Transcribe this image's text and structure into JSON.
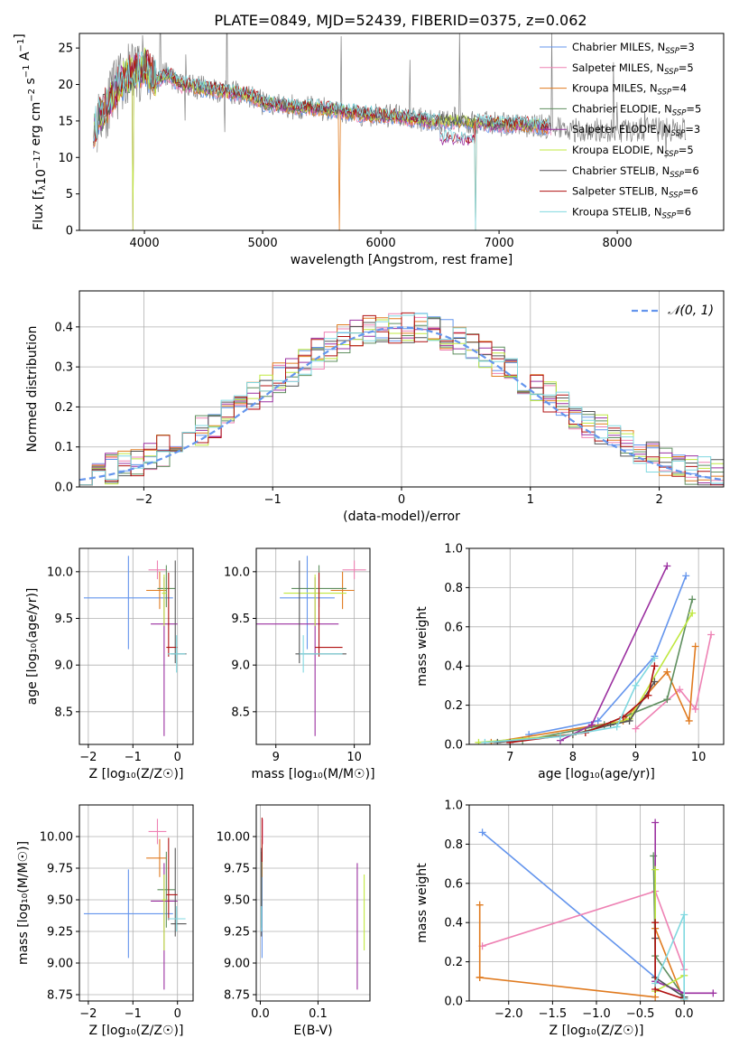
{
  "title": "PLATE=0849, MJD=52439, FIBERID=0375, z=0.062",
  "colors": [
    "#6495ed",
    "#ee82b4",
    "#e07b20",
    "#5f8f5f",
    "#9b30a0",
    "#c0e840",
    "#555555",
    "#b01010",
    "#80d8e0"
  ],
  "legend_spectrum": [
    {
      "label": "Chabrier MILES, N",
      "sub": "SSP",
      "tail": "=3"
    },
    {
      "label": "Salpeter MILES, N",
      "sub": "SSP",
      "tail": "=5"
    },
    {
      "label": "Kroupa MILES, N",
      "sub": "SSP",
      "tail": "=4"
    },
    {
      "label": "Chabrier ELODIE, N",
      "sub": "SSP",
      "tail": "=5"
    },
    {
      "label": "Salpeter ELODIE, N",
      "sub": "SSP",
      "tail": "=3"
    },
    {
      "label": "Kroupa ELODIE, N",
      "sub": "SSP",
      "tail": "=5"
    },
    {
      "label": "Chabrier STELIB, N",
      "sub": "SSP",
      "tail": "=6"
    },
    {
      "label": "Salpeter STELIB, N",
      "sub": "SSP",
      "tail": "=6"
    },
    {
      "label": "Kroupa STELIB, N",
      "sub": "SSP",
      "tail": "=6"
    }
  ],
  "legend_hist": "𝒩(0, 1)",
  "chart_data": [
    {
      "id": "spectrum",
      "type": "line",
      "xlabel": "wavelength [Angstrom, rest frame]",
      "ylabel_parts": [
        "Flux [f",
        "λ",
        "10",
        "−17",
        " erg cm",
        "−2",
        " s",
        "−1",
        " A",
        "−1",
        "]"
      ],
      "xlim": [
        3450,
        8900
      ],
      "ylim": [
        0,
        27
      ],
      "xticks": [
        4000,
        5000,
        6000,
        7000,
        8000
      ],
      "yticks": [
        0,
        5,
        10,
        15,
        20,
        25
      ],
      "envelope": [
        [
          3600,
          15.2
        ],
        [
          3700,
          17.5
        ],
        [
          3800,
          20.5
        ],
        [
          3900,
          21.5
        ],
        [
          4000,
          22.5
        ],
        [
          4100,
          20.5
        ],
        [
          4200,
          21.5
        ],
        [
          4300,
          20
        ],
        [
          4500,
          19.5
        ],
        [
          4700,
          19
        ],
        [
          4900,
          18.5
        ],
        [
          5000,
          17.5
        ],
        [
          5200,
          17
        ],
        [
          5400,
          16.8
        ],
        [
          5600,
          16.5
        ],
        [
          5800,
          16
        ],
        [
          6000,
          15.7
        ],
        [
          6200,
          15.5
        ],
        [
          6400,
          15
        ],
        [
          6600,
          15
        ],
        [
          6800,
          14.8
        ],
        [
          7000,
          14.5
        ],
        [
          7200,
          14.5
        ],
        [
          7400,
          14.2
        ]
      ],
      "observed_end": 8580
    },
    {
      "id": "residuals",
      "type": "step",
      "xlabel": "(data-model)/error",
      "ylabel": "Normed distribution",
      "xlim": [
        -2.5,
        2.5
      ],
      "ylim": [
        0,
        0.49
      ],
      "xticks": [
        -2,
        -1,
        0,
        1,
        2
      ],
      "yticks": [
        0.0,
        0.1,
        0.2,
        0.3,
        0.4
      ],
      "bins": 50,
      "reference": {
        "name": "𝒩(0, 1)",
        "mean": 0,
        "sigma": 1
      }
    },
    {
      "id": "age_vs_Z",
      "type": "errorbar",
      "xlabel": "Z [log₁₀(Z/Z☉)]",
      "ylabel": "age  [log₁₀(age/yr)]",
      "xlim": [
        -2.2,
        0.35
      ],
      "ylim": [
        8.15,
        10.25
      ],
      "xticks": [
        -2,
        -1,
        0
      ],
      "yticks": [
        8.5,
        9.0,
        9.5,
        10.0
      ],
      "points": [
        {
          "x": -1.1,
          "xerr": [
            1.0,
            1.0
          ],
          "y": 9.72,
          "yerr": [
            0.55,
            0.45
          ],
          "c": 0
        },
        {
          "x": -0.45,
          "xerr": [
            0.2,
            0.2
          ],
          "y": 10.02,
          "yerr": [
            0.1,
            0.1
          ],
          "c": 1
        },
        {
          "x": -0.4,
          "xerr": [
            0.3,
            0.15
          ],
          "y": 9.8,
          "yerr": [
            0.2,
            0.2
          ],
          "c": 2
        },
        {
          "x": -0.25,
          "xerr": [
            0.2,
            0.2
          ],
          "y": 9.82,
          "yerr": [
            0.2,
            0.25
          ],
          "c": 3
        },
        {
          "x": -0.3,
          "xerr": [
            0.3,
            0.3
          ],
          "y": 9.44,
          "yerr": [
            1.2,
            0.5
          ],
          "c": 4
        },
        {
          "x": -0.3,
          "xerr": [
            0.05,
            0.05
          ],
          "y": 9.77,
          "yerr": [
            0.35,
            0.2
          ],
          "c": 5
        },
        {
          "x": -0.05,
          "xerr": [
            0.1,
            0.25
          ],
          "y": 9.12,
          "yerr": [
            0.1,
            1.0
          ],
          "c": 6
        },
        {
          "x": -0.2,
          "xerr": [
            0.05,
            0.2
          ],
          "y": 9.19,
          "yerr": [
            0.1,
            0.8
          ],
          "c": 7
        },
        {
          "x": -0.02,
          "xerr": [
            0.2,
            0.2
          ],
          "y": 9.12,
          "yerr": [
            0.2,
            0.2
          ],
          "c": 8
        }
      ]
    },
    {
      "id": "age_vs_mass",
      "type": "errorbar",
      "xlabel": "mass [log₁₀(M/M☉)]",
      "ylabel": "",
      "xlim": [
        8.75,
        10.2
      ],
      "ylim": [
        8.15,
        10.25
      ],
      "xticks": [
        9,
        10
      ],
      "yticks": [
        8.5,
        9.0,
        9.5,
        10.0
      ],
      "points": [
        {
          "x": 9.4,
          "xerr": [
            0.35,
            0.35
          ],
          "y": 9.72,
          "yerr": [
            0.55,
            0.45
          ],
          "c": 0
        },
        {
          "x": 10.0,
          "xerr": [
            0.15,
            0.15
          ],
          "y": 10.02,
          "yerr": [
            0.1,
            0.1
          ],
          "c": 1
        },
        {
          "x": 9.85,
          "xerr": [
            0.15,
            0.15
          ],
          "y": 9.8,
          "yerr": [
            0.2,
            0.2
          ],
          "c": 2
        },
        {
          "x": 9.55,
          "xerr": [
            0.35,
            0.35
          ],
          "y": 9.82,
          "yerr": [
            0.2,
            0.25
          ],
          "c": 3
        },
        {
          "x": 9.5,
          "xerr": [
            0.8,
            0.3
          ],
          "y": 9.44,
          "yerr": [
            1.2,
            0.5
          ],
          "c": 4
        },
        {
          "x": 9.5,
          "xerr": [
            0.4,
            0.4
          ],
          "y": 9.77,
          "yerr": [
            0.35,
            0.2
          ],
          "c": 5
        },
        {
          "x": 9.3,
          "xerr": [
            0.05,
            0.6
          ],
          "y": 9.12,
          "yerr": [
            0.1,
            1.0
          ],
          "c": 6
        },
        {
          "x": 9.55,
          "xerr": [
            0.05,
            0.3
          ],
          "y": 9.19,
          "yerr": [
            0.1,
            0.8
          ],
          "c": 7
        },
        {
          "x": 9.35,
          "xerr": [
            0.05,
            0.5
          ],
          "y": 9.12,
          "yerr": [
            0.2,
            0.2
          ],
          "c": 8
        }
      ]
    },
    {
      "id": "mass_weight_vs_age",
      "type": "line",
      "xlabel": "age  [log₁₀(age/yr)]",
      "ylabel": "mass weight",
      "xlim": [
        6.35,
        10.4
      ],
      "ylim": [
        0,
        1.0
      ],
      "xticks": [
        7,
        8,
        9,
        10
      ],
      "yticks": [
        0.0,
        0.2,
        0.4,
        0.6,
        0.8,
        1.0
      ],
      "series": [
        {
          "c": 0,
          "x": [
            7.3,
            8.4,
            9.3,
            9.8
          ],
          "y": [
            0.05,
            0.12,
            0.45,
            0.86
          ]
        },
        {
          "c": 1,
          "x": [
            9.0,
            9.7,
            9.95,
            10.2
          ],
          "y": [
            0.08,
            0.28,
            0.18,
            0.56
          ]
        },
        {
          "c": 2,
          "x": [
            6.7,
            8.8,
            9.5,
            9.85,
            9.95
          ],
          "y": [
            0.01,
            0.12,
            0.37,
            0.12,
            0.5
          ]
        },
        {
          "c": 3,
          "x": [
            7.2,
            8.5,
            9.5,
            9.9
          ],
          "y": [
            0.02,
            0.1,
            0.23,
            0.74
          ]
        },
        {
          "c": 4,
          "x": [
            7.8,
            8.3,
            9.5
          ],
          "y": [
            0.02,
            0.1,
            0.91
          ]
        },
        {
          "c": 5,
          "x": [
            6.5,
            8.0,
            8.9,
            9.9
          ],
          "y": [
            0.01,
            0.05,
            0.13,
            0.67
          ]
        },
        {
          "c": 6,
          "x": [
            6.8,
            8.0,
            8.6,
            8.9,
            9.3
          ],
          "y": [
            0.01,
            0.05,
            0.1,
            0.12,
            0.32
          ]
        },
        {
          "c": 7,
          "x": [
            7.0,
            8.2,
            8.8,
            9.2,
            9.3
          ],
          "y": [
            0.01,
            0.06,
            0.14,
            0.25,
            0.4
          ]
        },
        {
          "c": 8,
          "x": [
            6.6,
            7.8,
            8.7,
            9.0,
            9.3
          ],
          "y": [
            0.01,
            0.04,
            0.09,
            0.3,
            0.44
          ]
        }
      ]
    },
    {
      "id": "mass_vs_Z",
      "type": "errorbar",
      "xlabel": "Z [log₁₀(Z/Z☉)]",
      "ylabel": "mass [log₁₀(M/M☉)]",
      "xlim": [
        -2.2,
        0.35
      ],
      "ylim": [
        8.7,
        10.25
      ],
      "xticks": [
        -2,
        -1,
        0
      ],
      "yticks": [
        8.75,
        9.0,
        9.25,
        9.5,
        9.75,
        10.0
      ],
      "points": [
        {
          "x": -1.1,
          "xerr": [
            1.0,
            1.0
          ],
          "y": 9.39,
          "yerr": [
            0.35,
            0.35
          ],
          "c": 0
        },
        {
          "x": -0.45,
          "xerr": [
            0.2,
            0.2
          ],
          "y": 10.04,
          "yerr": [
            0.1,
            0.1
          ],
          "c": 1
        },
        {
          "x": -0.4,
          "xerr": [
            0.3,
            0.15
          ],
          "y": 9.83,
          "yerr": [
            0.15,
            0.15
          ],
          "c": 2
        },
        {
          "x": -0.25,
          "xerr": [
            0.2,
            0.2
          ],
          "y": 9.58,
          "yerr": [
            0.3,
            0.3
          ],
          "c": 3
        },
        {
          "x": -0.3,
          "xerr": [
            0.3,
            0.3
          ],
          "y": 9.49,
          "yerr": [
            0.7,
            0.3
          ],
          "c": 4
        },
        {
          "x": -0.3,
          "xerr": [
            0.05,
            0.05
          ],
          "y": 9.5,
          "yerr": [
            0.4,
            0.2
          ],
          "c": 5
        },
        {
          "x": -0.05,
          "xerr": [
            0.1,
            0.25
          ],
          "y": 9.31,
          "yerr": [
            0.1,
            0.6
          ],
          "c": 6
        },
        {
          "x": -0.2,
          "xerr": [
            0.05,
            0.2
          ],
          "y": 9.54,
          "yerr": [
            0.2,
            0.45
          ],
          "c": 7
        },
        {
          "x": -0.02,
          "xerr": [
            0.2,
            0.2
          ],
          "y": 9.35,
          "yerr": [
            0.1,
            0.1
          ],
          "c": 8
        }
      ]
    },
    {
      "id": "mass_vs_EBV",
      "type": "errorbar",
      "xlabel": "E(B-V)",
      "ylabel": "",
      "xlim": [
        -0.007,
        0.19
      ],
      "ylim": [
        8.7,
        10.25
      ],
      "xticks": [
        0.0,
        0.1
      ],
      "yticks": [
        8.75,
        9.0,
        9.25,
        9.5,
        9.75,
        10.0
      ],
      "points": [
        {
          "x": 0.003,
          "xerr": [
            0,
            0
          ],
          "y": 9.39,
          "yerr": [
            0.35,
            0.35
          ],
          "c": 0
        },
        {
          "x": 0.004,
          "xerr": [
            0,
            0
          ],
          "y": 10.04,
          "yerr": [
            0.1,
            0.1
          ],
          "c": 1
        },
        {
          "x": 0.003,
          "xerr": [
            0,
            0
          ],
          "y": 9.83,
          "yerr": [
            0.15,
            0.15
          ],
          "c": 2
        },
        {
          "x": 0.002,
          "xerr": [
            0,
            0
          ],
          "y": 9.58,
          "yerr": [
            0.3,
            0.3
          ],
          "c": 3
        },
        {
          "x": 0.168,
          "xerr": [
            0,
            0
          ],
          "y": 9.49,
          "yerr": [
            0.7,
            0.3
          ],
          "c": 4
        },
        {
          "x": 0.18,
          "xerr": [
            0,
            0
          ],
          "y": 9.4,
          "yerr": [
            0.3,
            0.3
          ],
          "c": 5
        },
        {
          "x": 0.002,
          "xerr": [
            0,
            0
          ],
          "y": 9.31,
          "yerr": [
            0.1,
            0.6
          ],
          "c": 6
        },
        {
          "x": 0.003,
          "xerr": [
            0,
            0
          ],
          "y": 10.0,
          "yerr": [
            0.2,
            0.15
          ],
          "c": 7
        },
        {
          "x": 0.002,
          "xerr": [
            0,
            0
          ],
          "y": 9.35,
          "yerr": [
            0.1,
            0.1
          ],
          "c": 8
        }
      ]
    },
    {
      "id": "mass_weight_vs_Z",
      "type": "line",
      "xlabel": "Z [log₁₀(Z/Z☉)]",
      "ylabel": "mass weight",
      "xlim": [
        -2.45,
        0.45
      ],
      "ylim": [
        0,
        1.0
      ],
      "xticks": [
        -2.0,
        -1.5,
        -1.0,
        -0.5,
        0.0
      ],
      "yticks": [
        0.0,
        0.2,
        0.4,
        0.6,
        0.8,
        1.0
      ],
      "series": [
        {
          "c": 0,
          "x": [
            -2.3,
            -0.33,
            0.0
          ],
          "y": [
            0.86,
            0.12,
            0.02
          ]
        },
        {
          "c": 1,
          "x": [
            -2.3,
            -0.33,
            0.0
          ],
          "y": [
            0.28,
            0.56,
            0.16
          ]
        },
        {
          "c": 2,
          "x": [
            -2.33,
            -2.33,
            -2.33,
            -0.33,
            -0.33,
            0.0
          ],
          "y": [
            0.49,
            0.12,
            0.12,
            0.02,
            0.37,
            0.0
          ]
        },
        {
          "c": 3,
          "x": [
            -0.35,
            -0.33,
            0.0
          ],
          "y": [
            0.74,
            0.23,
            0.02
          ]
        },
        {
          "c": 4,
          "x": [
            -0.33,
            -0.33,
            0.0,
            0.33
          ],
          "y": [
            0.91,
            0.1,
            0.04,
            0.04
          ]
        },
        {
          "c": 5,
          "x": [
            -0.33,
            -0.33,
            0.0
          ],
          "y": [
            0.67,
            0.05,
            0.13
          ]
        },
        {
          "c": 6,
          "x": [
            -0.33,
            -0.33,
            0.0
          ],
          "y": [
            0.32,
            0.12,
            0.02
          ]
        },
        {
          "c": 7,
          "x": [
            -0.33,
            -0.33,
            0.0
          ],
          "y": [
            0.4,
            0.06,
            0.01
          ]
        },
        {
          "c": 8,
          "x": [
            -0.33,
            0.0,
            0.0
          ],
          "y": [
            0.09,
            0.44,
            0.01
          ]
        }
      ]
    }
  ]
}
